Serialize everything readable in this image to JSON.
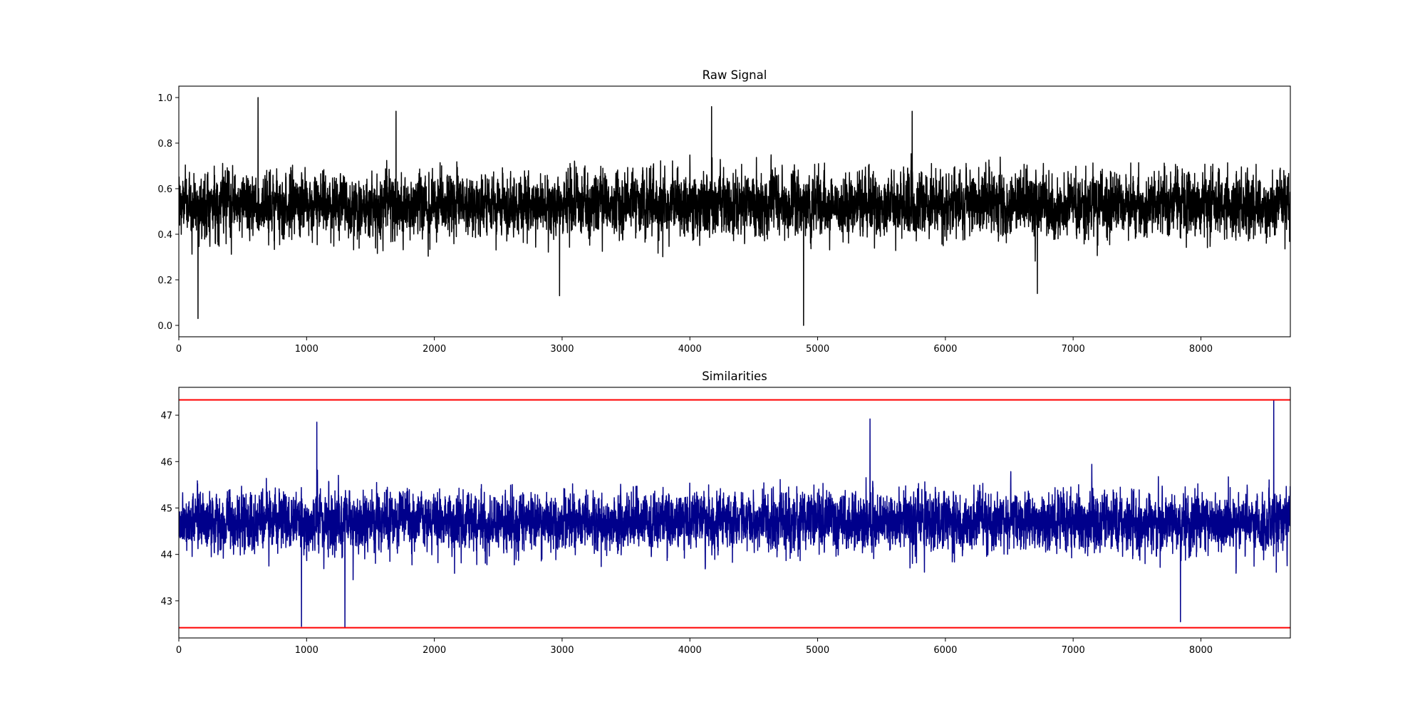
{
  "chart_data": [
    {
      "type": "line",
      "title": "Raw Signal",
      "xlabel": "",
      "ylabel": "",
      "xlim": [
        0,
        8700
      ],
      "ylim": [
        -0.05,
        1.05
      ],
      "xticks": [
        0,
        1000,
        2000,
        3000,
        4000,
        5000,
        6000,
        7000,
        8000
      ],
      "xtick_labels": [
        "0",
        "1000",
        "2000",
        "3000",
        "4000",
        "5000",
        "6000",
        "7000",
        "8000"
      ],
      "yticks": [
        0.0,
        0.2,
        0.4,
        0.6,
        0.8,
        1.0
      ],
      "ytick_labels": [
        "0.0",
        "0.2",
        "0.4",
        "0.6",
        "0.8",
        "1.0"
      ],
      "grid": false,
      "series": [
        {
          "color": "#000000",
          "n_points": 8700,
          "typical_range": [
            0.3,
            0.8
          ],
          "center": 0.53,
          "extremes": [
            {
              "x": 150,
              "y": 0.03
            },
            {
              "x": 620,
              "y": 1.0
            },
            {
              "x": 1700,
              "y": 0.94
            },
            {
              "x": 2980,
              "y": 0.13
            },
            {
              "x": 4170,
              "y": 0.96
            },
            {
              "x": 4890,
              "y": 0.0
            },
            {
              "x": 5740,
              "y": 0.94
            },
            {
              "x": 6720,
              "y": 0.14
            }
          ]
        }
      ]
    },
    {
      "type": "line",
      "title": "Similarities",
      "xlabel": "",
      "ylabel": "",
      "xlim": [
        0,
        8700
      ],
      "ylim": [
        42.2,
        47.6
      ],
      "xticks": [
        0,
        1000,
        2000,
        3000,
        4000,
        5000,
        6000,
        7000,
        8000
      ],
      "xtick_labels": [
        "0",
        "1000",
        "2000",
        "3000",
        "4000",
        "5000",
        "6000",
        "7000",
        "8000"
      ],
      "yticks": [
        43,
        44,
        45,
        46,
        47
      ],
      "ytick_labels": [
        "43",
        "44",
        "45",
        "46",
        "47"
      ],
      "grid": false,
      "series": [
        {
          "color": "#00008b",
          "n_points": 8700,
          "typical_range": [
            43.6,
            45.9
          ],
          "center": 44.7,
          "extremes": [
            {
              "x": 960,
              "y": 42.45
            },
            {
              "x": 1300,
              "y": 42.42
            },
            {
              "x": 1080,
              "y": 46.85
            },
            {
              "x": 5410,
              "y": 46.92
            },
            {
              "x": 7840,
              "y": 42.55
            },
            {
              "x": 8570,
              "y": 47.33
            }
          ]
        }
      ],
      "hlines": [
        {
          "y": 47.33,
          "color": "#ff0000"
        },
        {
          "y": 42.42,
          "color": "#ff0000"
        }
      ]
    }
  ]
}
